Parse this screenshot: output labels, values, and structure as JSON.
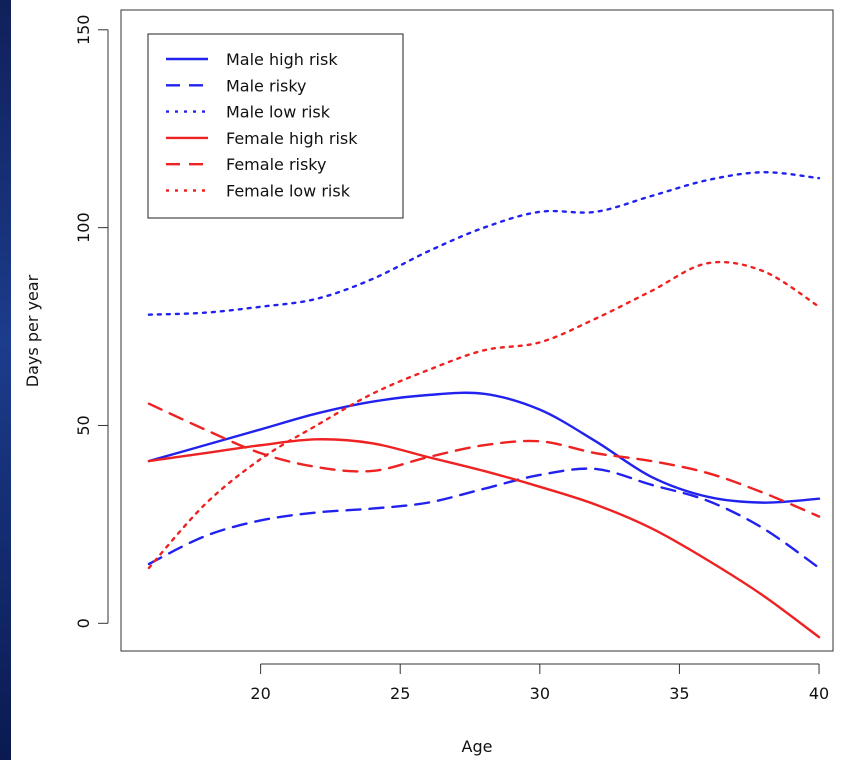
{
  "chart_data": {
    "type": "line",
    "title": "",
    "xlabel": "Age",
    "ylabel": "Days per year",
    "xlim": [
      15,
      40.5
    ],
    "ylim": [
      -7,
      155
    ],
    "xticks": [
      20,
      25,
      30,
      35,
      40
    ],
    "yticks": [
      0,
      50,
      100,
      150
    ],
    "grid": false,
    "legend_position": "top-left",
    "colors": {
      "male": "#2222ee",
      "female": "#ee2222"
    },
    "x": [
      16,
      18,
      20,
      22,
      24,
      26,
      28,
      30,
      32,
      34,
      36,
      38,
      40
    ],
    "series": [
      {
        "name": "Male high risk",
        "color": "#2222ee",
        "dash": "solid",
        "values": [
          41,
          45,
          49,
          53,
          56,
          57.7,
          58,
          54,
          46,
          37,
          32,
          30.5,
          31.5
        ]
      },
      {
        "name": "Male risky",
        "color": "#2222ee",
        "dash": "dashed",
        "values": [
          15,
          22,
          26,
          28,
          29,
          30.5,
          34,
          37.5,
          39,
          35,
          31,
          24,
          14
        ]
      },
      {
        "name": "Male low risk",
        "color": "#2222ee",
        "dash": "dotted",
        "values": [
          78,
          78.5,
          80,
          82,
          87,
          94,
          100,
          104,
          104,
          108,
          112,
          114,
          112.5
        ]
      },
      {
        "name": "Female high risk",
        "color": "#ee2222",
        "dash": "solid",
        "values": [
          41,
          43,
          45,
          46.5,
          45.5,
          42,
          38.5,
          34.5,
          30,
          24,
          16,
          7,
          -3.5
        ]
      },
      {
        "name": "Female risky",
        "color": "#ee2222",
        "dash": "dashed",
        "values": [
          55.5,
          49,
          43,
          39.5,
          38.5,
          42,
          45,
          46,
          43,
          41,
          38,
          33,
          27
        ]
      },
      {
        "name": "Female low risk",
        "color": "#ee2222",
        "dash": "dotted",
        "values": [
          14,
          30,
          41.5,
          50,
          58,
          64,
          69,
          71,
          77,
          84,
          91,
          89,
          80
        ]
      }
    ]
  }
}
